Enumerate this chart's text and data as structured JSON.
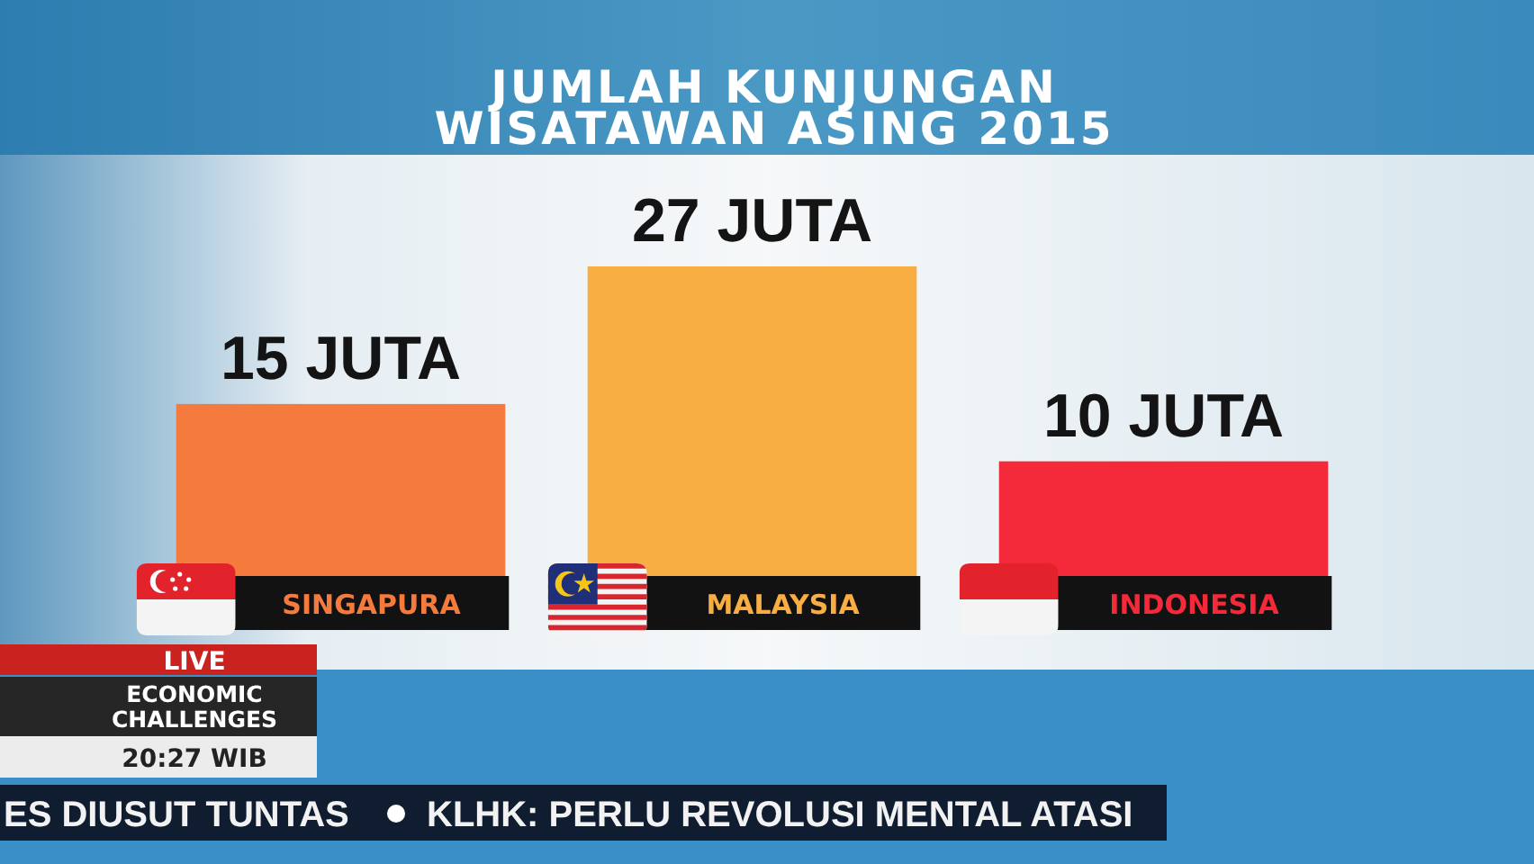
{
  "chart_data": {
    "type": "bar",
    "title": "JUMLAH KUNJUNGAN WISATAWAN ASING 2015",
    "categories": [
      "SINGAPURA",
      "MALAYSIA",
      "INDONESIA"
    ],
    "values": [
      15,
      27,
      10
    ],
    "colors": [
      "#f47b3d",
      "#f9ae43",
      "#f42a3a"
    ],
    "value_labels": [
      "15 JUTA",
      "27 JUTA",
      "10 JUTA"
    ],
    "annotations": [
      "LIVE",
      "ECONOMIC CHALLENGES",
      "20:27 WIB",
      "ES DIUSUT TUNTAS",
      "KLHK: PERLU REVOLUSI MENTAL ATASI"
    ]
  }
}
